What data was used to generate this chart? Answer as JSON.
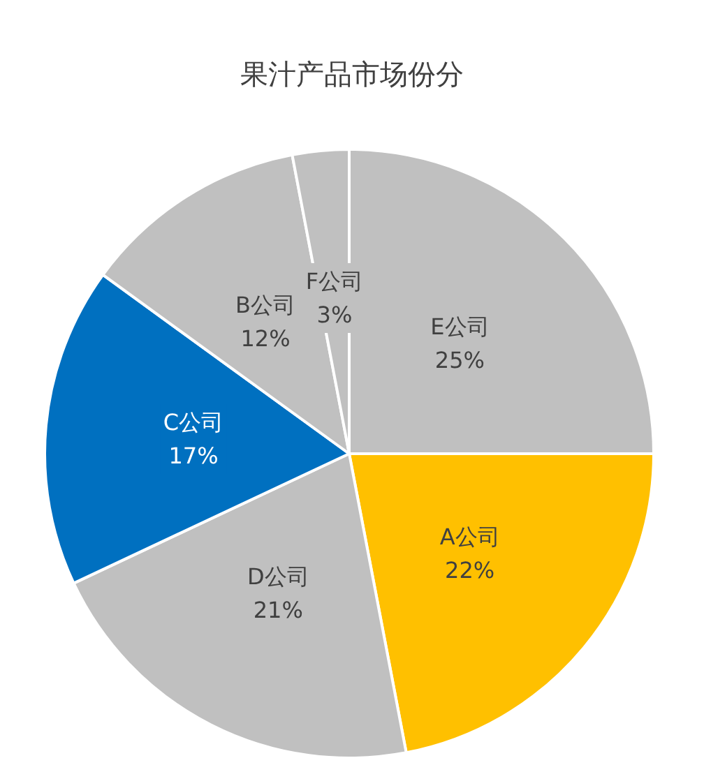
{
  "chart_data": {
    "type": "pie",
    "title": "果汁产品市场份分",
    "categories": [
      "E公司",
      "A公司",
      "D公司",
      "C公司",
      "B公司",
      "F公司"
    ],
    "values": [
      25,
      22,
      21,
      17,
      12,
      3
    ],
    "value_labels": [
      "25%",
      "22%",
      "21%",
      "17%",
      "12%",
      "3%"
    ],
    "colors": [
      "#c0c0c0",
      "#ffc000",
      "#c0c0c0",
      "#0070c0",
      "#c0c0c0",
      "#c0c0c0"
    ],
    "legend": false
  }
}
